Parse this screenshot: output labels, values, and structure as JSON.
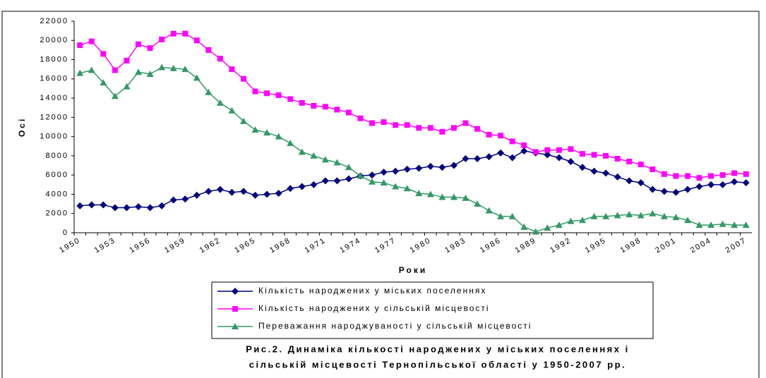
{
  "chart_data": {
    "type": "line",
    "title": [
      "Рис.2. Динаміка кількості народжених у міських поселеннях і",
      "сільській місцевості Тернопільської області у 1950-2007 рр."
    ],
    "x_label": "Роки",
    "y_label": "Осі",
    "categories": [
      "1950",
      null,
      null,
      "1953",
      null,
      null,
      "1956",
      null,
      null,
      "1959",
      null,
      null,
      "1962",
      null,
      null,
      "1965",
      null,
      null,
      "1968",
      null,
      null,
      "1971",
      null,
      null,
      "1974",
      null,
      null,
      "1977",
      null,
      null,
      "1980",
      null,
      null,
      "1983",
      null,
      null,
      "1986",
      null,
      null,
      "1989",
      null,
      null,
      "1992",
      null,
      null,
      "1995",
      null,
      null,
      "1998",
      null,
      null,
      "2001",
      null,
      null,
      "2004",
      null,
      null,
      "2007"
    ],
    "ylim": [
      0,
      22000
    ],
    "yticks": [
      0,
      2000,
      4000,
      6000,
      8000,
      10000,
      12000,
      14000,
      16000,
      18000,
      20000,
      22000
    ],
    "series": [
      {
        "name": "Кількість народжених у міських поселеннях",
        "color": "#000080",
        "marker": "diamond",
        "values": [
          2800,
          2900,
          2900,
          2600,
          2600,
          2700,
          2600,
          2800,
          3400,
          3500,
          3900,
          4300,
          4500,
          4200,
          4300,
          3900,
          4000,
          4100,
          4600,
          4800,
          5000,
          5400,
          5400,
          5600,
          5900,
          6000,
          6300,
          6400,
          6600,
          6700,
          6900,
          6800,
          7000,
          7700,
          7700,
          7900,
          8300,
          7800,
          8500,
          8300,
          8100,
          7800,
          7400,
          6800,
          6400,
          6200,
          5800,
          5400,
          5200,
          4500,
          4300,
          4200,
          4500,
          4800,
          5000,
          5000,
          5300,
          5200
        ]
      },
      {
        "name": "Кількість народжених у сільській місцевості",
        "color": "#ff00ff",
        "marker": "square",
        "values": [
          19500,
          19900,
          18600,
          16900,
          17900,
          19600,
          19200,
          20100,
          20700,
          20700,
          20000,
          19000,
          18100,
          17000,
          16000,
          14700,
          14500,
          14300,
          13900,
          13500,
          13200,
          13100,
          12800,
          12500,
          11900,
          11400,
          11500,
          11200,
          11200,
          10900,
          10900,
          10500,
          10900,
          11400,
          10800,
          10200,
          10100,
          9500,
          9100,
          8400,
          8600,
          8600,
          8700,
          8200,
          8100,
          8000,
          7700,
          7400,
          7100,
          6600,
          6100,
          5900,
          5900,
          5700,
          5900,
          6000,
          6200,
          6100
        ]
      },
      {
        "name": "Переважання народжуваності у сільській місцевості",
        "color": "#339966",
        "marker": "triangle",
        "values": [
          16600,
          16900,
          15600,
          14200,
          15200,
          16700,
          16500,
          17200,
          17100,
          17000,
          16100,
          14600,
          13500,
          12700,
          11600,
          10700,
          10400,
          10000,
          9300,
          8400,
          8000,
          7600,
          7300,
          6800,
          5900,
          5300,
          5200,
          4800,
          4600,
          4100,
          4000,
          3700,
          3700,
          3600,
          3000,
          2300,
          1700,
          1700,
          600,
          100,
          500,
          800,
          1200,
          1300,
          1700,
          1700,
          1800,
          1900,
          1800,
          2000,
          1700,
          1600,
          1300,
          800,
          800,
          900,
          800,
          800
        ]
      }
    ]
  }
}
